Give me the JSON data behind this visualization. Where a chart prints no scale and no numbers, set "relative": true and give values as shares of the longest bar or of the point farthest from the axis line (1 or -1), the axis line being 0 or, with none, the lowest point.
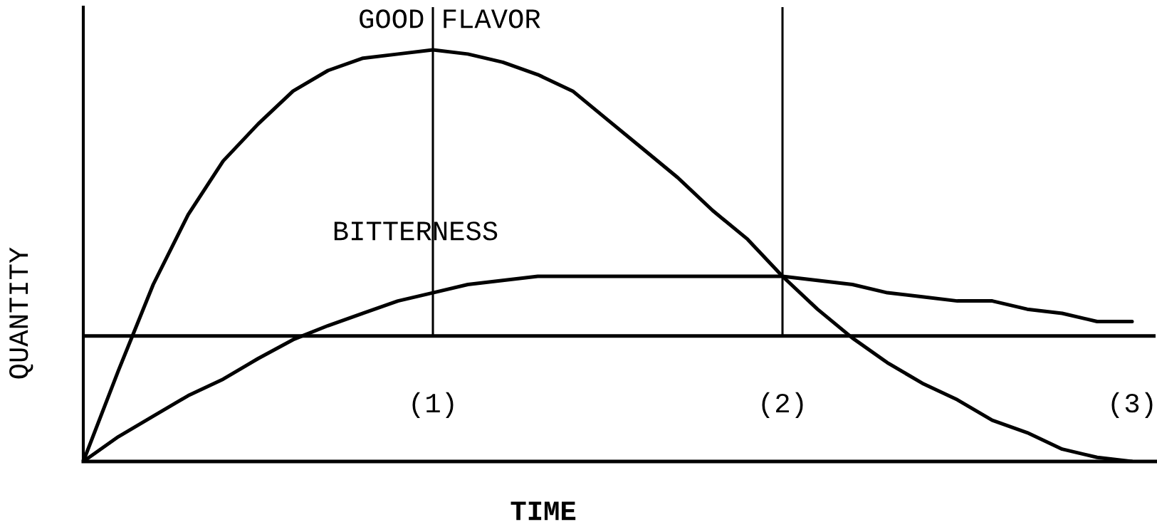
{
  "chart_data": {
    "type": "line",
    "relative": true,
    "xlabel": "TIME",
    "ylabel": "QUANTITY",
    "tick_labels": "x",
    "categories": [
      null,
      null,
      null,
      null,
      null,
      null,
      null,
      null,
      null,
      null,
      "(1)",
      null,
      null,
      null,
      null,
      null,
      null,
      null,
      null,
      null,
      "(2)",
      null,
      null,
      null,
      null,
      null,
      null,
      null,
      null,
      null,
      "(3)"
    ],
    "series": [
      {
        "name": "GOOD FLAVOR",
        "color": "#000000",
        "values": [
          0,
          0.22,
          0.43,
          0.6,
          0.73,
          0.82,
          0.9,
          0.95,
          0.98,
          0.99,
          1,
          0.99,
          0.97,
          0.94,
          0.9,
          0.83,
          0.76,
          0.69,
          0.61,
          0.54,
          0.45,
          0.37,
          0.3,
          0.24,
          0.19,
          0.15,
          0.1,
          0.07,
          0.03,
          0.01,
          0
        ]
      },
      {
        "name": "BITTERNESS",
        "color": "#000000",
        "values": [
          0,
          0.06,
          0.11,
          0.16,
          0.2,
          0.25,
          0.296,
          0.33,
          0.36,
          0.39,
          0.41,
          0.43,
          0.44,
          0.45,
          0.45,
          0.45,
          0.45,
          0.45,
          0.45,
          0.45,
          0.45,
          0.44,
          0.43,
          0.41,
          0.4,
          0.39,
          0.39,
          0.37,
          0.36,
          0.34,
          0.34
        ]
      }
    ],
    "ref_lines": [
      {
        "axis": "y",
        "value": 0.305,
        "color": "#000000"
      },
      {
        "axis": "x",
        "value": "(1)",
        "color": "#000000"
      },
      {
        "axis": "x",
        "value": "(2)",
        "color": "#000000"
      }
    ]
  }
}
